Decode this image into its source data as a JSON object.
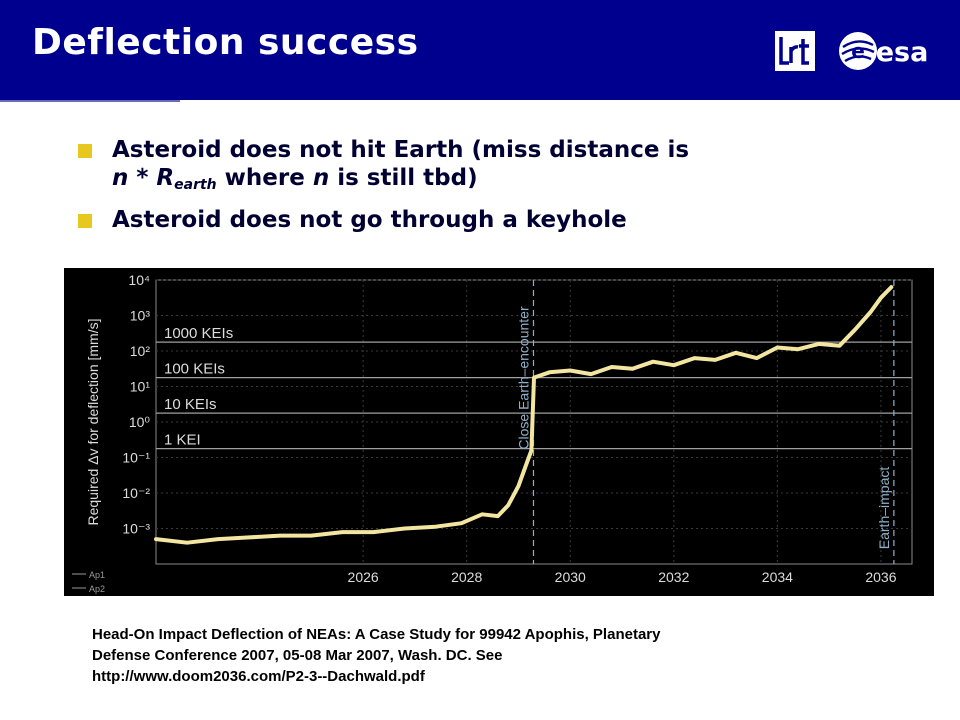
{
  "header": {
    "title": "Deflection success",
    "logo_left_text": "lrt",
    "logo_right_text": "esa",
    "background_color": "#00008f"
  },
  "bullets": [
    {
      "line1": "Asteroid does not hit Earth (miss distance is",
      "line2_n": "n",
      "line2_op": " * ",
      "line2_R": "R",
      "line2_sub": "earth",
      "line2_where": " where ",
      "line2_n2": "n",
      "line2_rest": " is still tbd)"
    },
    {
      "text": "Asteroid does not go through a keyhole"
    }
  ],
  "chart_data": {
    "type": "line",
    "title": "",
    "xlabel": "",
    "ylabel": "Required Δv for deflection [mm/s]",
    "xlim": [
      2022.0,
      2036.6
    ],
    "ylim_log10": [
      -4,
      4
    ],
    "yscale": "log",
    "x_ticks": [
      "2026",
      "2028",
      "2030",
      "2032",
      "2034",
      "2036"
    ],
    "y_ticks": [
      "10⁻³",
      "10⁻²",
      "10⁻¹",
      "10⁰",
      "10¹",
      "10²",
      "10³",
      "10⁴"
    ],
    "reference_lines": [
      {
        "label": "1000 KEIs",
        "log10_value": 2.25
      },
      {
        "label": "100 KEIs",
        "log10_value": 1.25
      },
      {
        "label": "10 KEIs",
        "log10_value": 0.25
      },
      {
        "label": "1 KEI",
        "log10_value": -0.75
      }
    ],
    "vertical_markers": [
      {
        "label": "Close Earth–encounter",
        "x": 2029.29
      },
      {
        "label": "Earth–impact",
        "x": 2036.25
      }
    ],
    "legend": {
      "position": "bottom-left",
      "entries": [
        "Ap1",
        "Ap2"
      ]
    },
    "grid": true,
    "series": [
      {
        "name": "Ap1",
        "x": [
          2022.0,
          2022.6,
          2023.2,
          2023.8,
          2024.4,
          2025.0,
          2025.6,
          2026.2,
          2026.8,
          2027.4,
          2027.9,
          2028.3,
          2028.6,
          2028.8,
          2029.0,
          2029.15,
          2029.25,
          2029.3,
          2029.6,
          2030.0,
          2030.4,
          2030.8,
          2031.2,
          2031.6,
          2032.0,
          2032.4,
          2032.8,
          2033.2,
          2033.6,
          2034.0,
          2034.4,
          2034.8,
          2035.2,
          2035.5,
          2035.8,
          2036.0,
          2036.2
        ],
        "y_log10": [
          -3.3,
          -3.4,
          -3.3,
          -3.25,
          -3.2,
          -3.2,
          -3.1,
          -3.1,
          -3.0,
          -2.95,
          -2.85,
          -2.6,
          -2.65,
          -2.35,
          -1.8,
          -1.2,
          -0.8,
          1.25,
          1.4,
          1.45,
          1.35,
          1.55,
          1.5,
          1.7,
          1.6,
          1.8,
          1.75,
          1.95,
          1.8,
          2.1,
          2.05,
          2.2,
          2.15,
          2.6,
          3.1,
          3.5,
          3.8
        ]
      }
    ]
  },
  "citation": {
    "line1": "Head-On Impact Deflection of NEAs: A Case Study for 99942 Apophis, Planetary",
    "line2": "Defense Conference 2007, 05-08 Mar 2007, Wash. DC. See",
    "line3": "http://www.doom2036.com/P2-3--Dachwald.pdf"
  },
  "colors": {
    "bullet_marker": "#e6c81e",
    "curve": "#f2e6a0",
    "grid": "#8a8a8a",
    "marker_line": "#8fb0c8"
  }
}
